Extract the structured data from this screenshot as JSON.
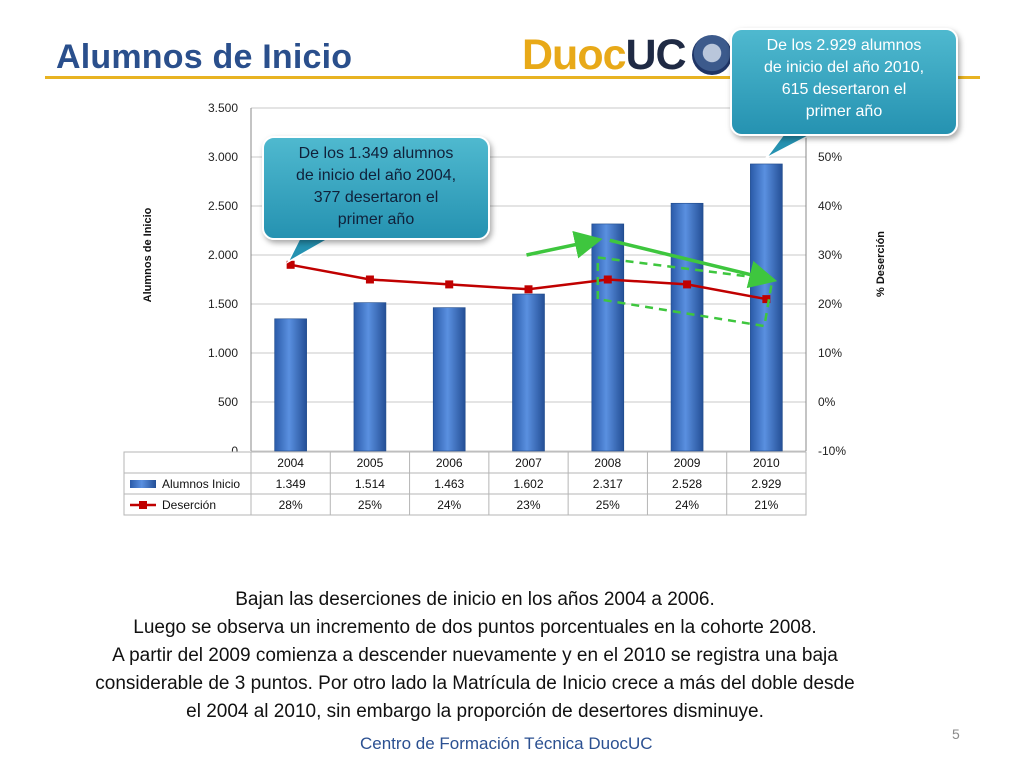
{
  "slide": {
    "title": "Alumnos de Inicio",
    "logo": {
      "text1": "Duoc",
      "text2": "UC"
    },
    "callout_left": [
      "De los 1.349 alumnos",
      "de inicio del año 2004,",
      "377 desertaron el",
      "primer año"
    ],
    "callout_right": [
      "De los 2.929 alumnos",
      "de inicio del año 2010,",
      "615 desertaron el",
      "primer año"
    ],
    "caption": [
      "Bajan las deserciones de inicio en los años 2004 a 2006.",
      "Luego se observa un incremento de dos puntos porcentuales en la cohorte 2008.",
      "A partir del 2009 comienza  a descender nuevamente y en el 2010 se registra una baja",
      "considerable de 3 puntos. Por otro lado la Matrícula de Inicio crece a más del doble desde",
      "el 2004 al 2010, sin embargo la proporción de desertores disminuye."
    ],
    "footer": "Centro de Formación Técnica DuocUC",
    "page_number": "5"
  },
  "chart_data": {
    "type": "bar",
    "categories": [
      "2004",
      "2005",
      "2006",
      "2007",
      "2008",
      "2009",
      "2010"
    ],
    "series": [
      {
        "name": "Alumnos Inicio",
        "kind": "bar",
        "axis": "left",
        "values": [
          1349,
          1514,
          1463,
          1602,
          2317,
          2528,
          2929
        ],
        "table_labels": [
          "1.349",
          "1.514",
          "1.463",
          "1.602",
          "2.317",
          "2.528",
          "2.929"
        ],
        "color": "#3a6fc4"
      },
      {
        "name": "Deserción",
        "kind": "line",
        "axis": "right",
        "values": [
          28,
          25,
          24,
          23,
          25,
          24,
          21
        ],
        "table_labels": [
          "28%",
          "25%",
          "24%",
          "23%",
          "25%",
          "24%",
          "21%"
        ],
        "color": "#c00000"
      }
    ],
    "ylabel": "Alumnos  de  Inicio",
    "y2label": "% Deserción",
    "ylim": [
      0,
      3500
    ],
    "y2lim": [
      -10,
      60
    ],
    "yticks": [
      0,
      500,
      1000,
      1500,
      2000,
      2500,
      3000,
      3500
    ],
    "ytick_labels": [
      "0",
      "500",
      "1.000",
      "1.500",
      "2.000",
      "2.500",
      "3.000",
      "3.500"
    ],
    "y2ticks": [
      -10,
      0,
      10,
      20,
      30,
      40,
      50
    ],
    "y2tick_labels": [
      "-10%",
      "0%",
      "10%",
      "20%",
      "30%",
      "40%",
      "50%"
    ],
    "grid": true,
    "data_table": true,
    "colors": {
      "grid": "#c8c8c8",
      "trend_arrow": "#3ec63e"
    }
  }
}
